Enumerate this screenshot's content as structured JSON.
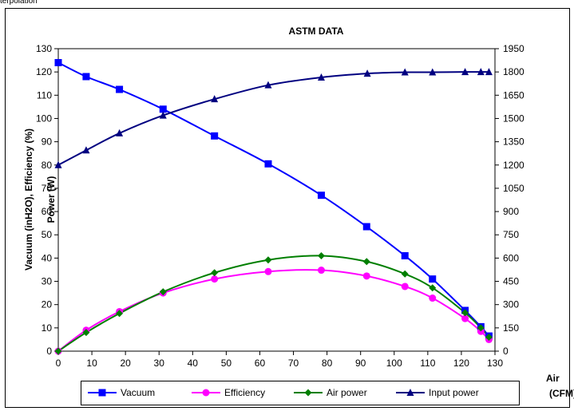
{
  "page": {
    "caption": "terpolation"
  },
  "chart_data": {
    "type": "line",
    "title": "ASTM DATA",
    "ylabel": "Vacuum (inH2O), Efficiency (%)",
    "y2label": "Power (W)",
    "xlabel": "Air (CFM)",
    "xlim": [
      0,
      130
    ],
    "ylim": [
      0,
      130
    ],
    "y2lim": [
      0,
      1950
    ],
    "x_ticks": [
      0,
      10,
      20,
      30,
      40,
      50,
      60,
      70,
      80,
      90,
      100,
      110,
      120,
      130
    ],
    "y_ticks": [
      0,
      10,
      20,
      30,
      40,
      50,
      60,
      70,
      80,
      90,
      100,
      110,
      120,
      130
    ],
    "y2_ticks": [
      0,
      150,
      300,
      450,
      600,
      750,
      900,
      1050,
      1200,
      1350,
      1500,
      1650,
      1800,
      1950
    ],
    "grid": {
      "x": false,
      "y": false
    },
    "legend_position": "bottom",
    "x": [
      0,
      8.3,
      18.2,
      31.2,
      46.5,
      62.5,
      78.3,
      91.8,
      103.2,
      111.4,
      121.1,
      125.8,
      128.2
    ],
    "series": [
      {
        "name": "Vacuum",
        "axis": "left",
        "color": "#0000ff",
        "marker": "square",
        "values": [
          124,
          118,
          112.5,
          104,
          92.5,
          80.5,
          67,
          53.5,
          41,
          31,
          17.5,
          10.5,
          6.5
        ]
      },
      {
        "name": "Efficiency",
        "axis": "left",
        "color": "#ff00ff",
        "marker": "circle",
        "values": [
          0,
          9,
          17,
          25,
          31,
          34.2,
          34.8,
          32.3,
          27.8,
          22.8,
          14,
          8.5,
          5
        ]
      },
      {
        "name": "Air power",
        "axis": "left",
        "color": "#007f00",
        "marker": "diamond",
        "values": [
          0,
          8,
          16.2,
          25.5,
          33.7,
          39.2,
          41,
          38.5,
          33.2,
          27.2,
          16.5,
          10,
          6
        ]
      },
      {
        "name": "Input power",
        "axis": "right",
        "color": "#000080",
        "marker": "triangle",
        "x": [
          0,
          8.3,
          18.2,
          31.2,
          46.5,
          62.5,
          78.3,
          92,
          103.2,
          111.4,
          121.1,
          125.8,
          128.2
        ],
        "values": [
          1200,
          1295,
          1405,
          1520,
          1625,
          1715,
          1765,
          1790,
          1798,
          1798,
          1800,
          1800,
          1800
        ]
      }
    ]
  }
}
